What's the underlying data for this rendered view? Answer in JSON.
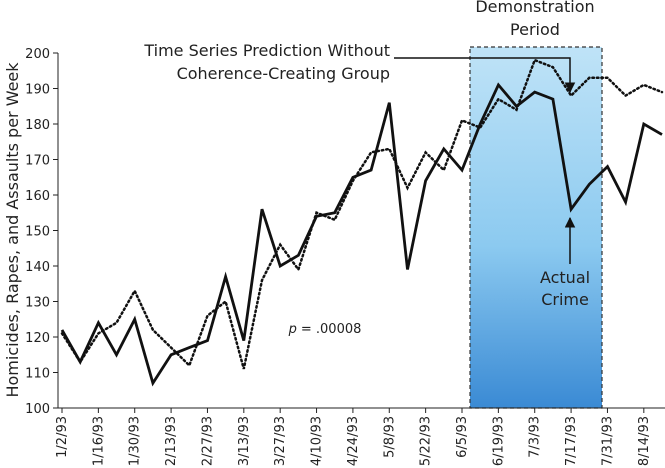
{
  "chart_data": {
    "type": "line",
    "y_label": "Homicides, Rapes, and Assaults per Week",
    "categories": [
      "1/2/93",
      null,
      "1/16/93",
      null,
      "1/30/93",
      null,
      "2/13/93",
      null,
      "2/27/93",
      null,
      "3/13/93",
      null,
      "3/27/93",
      null,
      "4/10/93",
      null,
      "4/24/93",
      null,
      "5/8/93",
      null,
      "5/22/93",
      null,
      "6/5/93",
      null,
      "6/19/93",
      null,
      "7/3/93",
      null,
      "7/17/93",
      null,
      "7/31/93",
      null,
      "8/14/93",
      null
    ],
    "series": [
      {
        "name": "Actual Crime",
        "color": "#111111",
        "style": "solid",
        "values": [
          122,
          113,
          124,
          115,
          125,
          107,
          115,
          117,
          119,
          137,
          119,
          156,
          140,
          143,
          154,
          155,
          165,
          167,
          186,
          139,
          164,
          173,
          167,
          180,
          191,
          185,
          189,
          187,
          156,
          163,
          168,
          158,
          180,
          177
        ]
      },
      {
        "name": "Time Series Prediction Without Coherence-Creating Group",
        "color": "#111111",
        "style": "dotted",
        "values": [
          121,
          113,
          121,
          124,
          133,
          122,
          117,
          112,
          126,
          130,
          111,
          136,
          146,
          139,
          155,
          153,
          164,
          172,
          173,
          162,
          172,
          167,
          181,
          179,
          187,
          184,
          198,
          196,
          188,
          193,
          193,
          188,
          191,
          189
        ]
      }
    ],
    "ylim": [
      100,
      200
    ],
    "yticks": [
      100,
      110,
      120,
      130,
      140,
      150,
      160,
      170,
      180,
      190,
      200
    ],
    "annotations": {
      "demonstration": [
        "Demonstration",
        "Period"
      ],
      "prediction": [
        "Time Series Prediction Without",
        "Coherence-Creating Group"
      ],
      "actual": [
        "Actual",
        "Crime"
      ],
      "p_value": {
        "symbol": "p",
        "text": "= .00008"
      }
    }
  }
}
